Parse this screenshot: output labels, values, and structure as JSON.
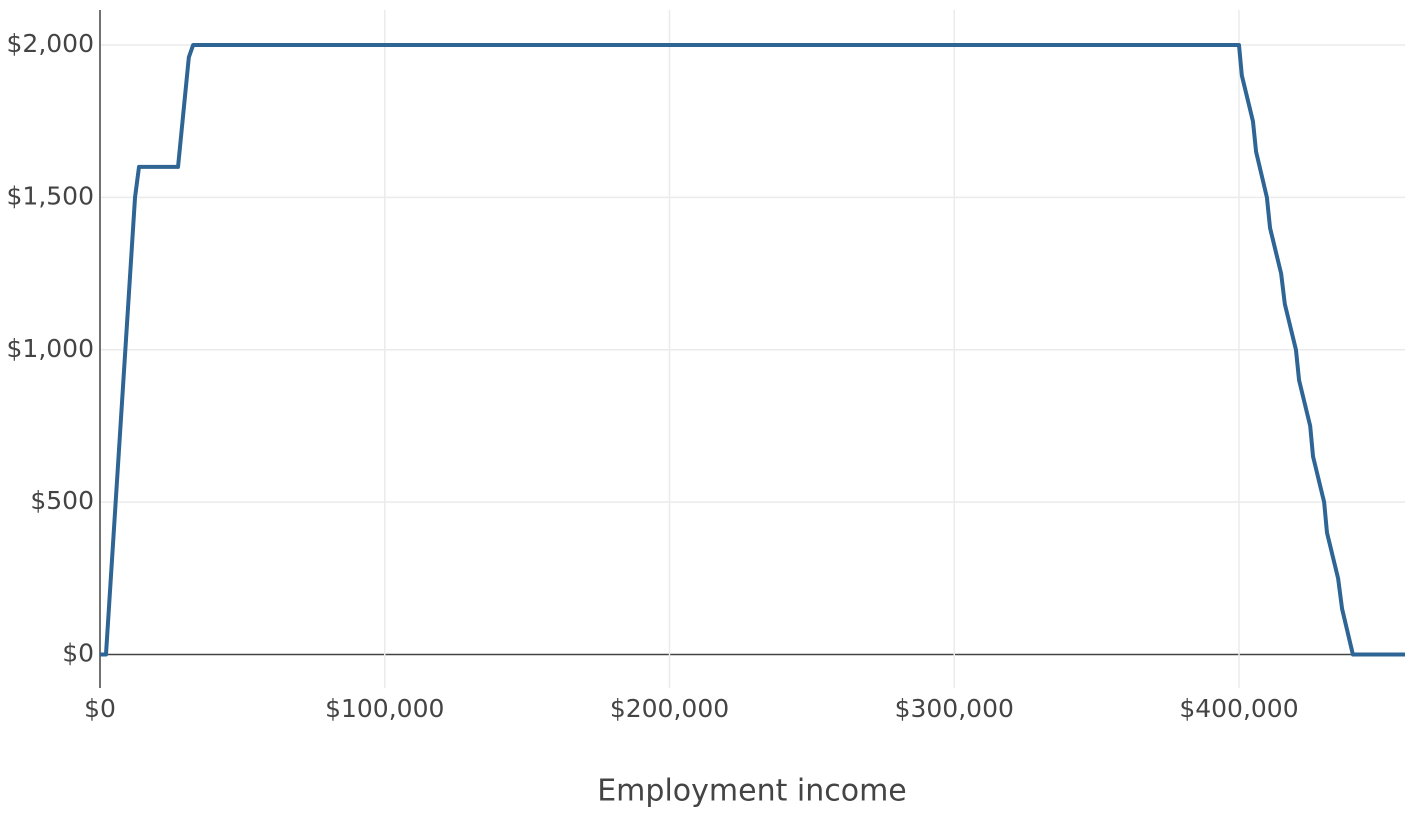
{
  "chart_data": {
    "type": "line",
    "x_label": "Employment income",
    "x": [
      0,
      2100,
      12300,
      13700,
      27400,
      31200,
      32700,
      400000,
      401000,
      404900,
      406000,
      409800,
      410900,
      414800,
      416100,
      420000,
      421100,
      425000,
      426000,
      429900,
      430900,
      434800,
      436200,
      440000,
      458300
    ],
    "series": [
      {
        "color": "#2e6595",
        "values": [
          0,
          0,
          1500,
          1600,
          1600,
          1960,
          2000,
          2000,
          1900,
          1750,
          1650,
          1500,
          1400,
          1250,
          1150,
          1000,
          900,
          750,
          650,
          500,
          400,
          250,
          150,
          0,
          0
        ]
      }
    ],
    "xlim": [
      0,
      458300
    ],
    "ylim": [
      -110,
      2115
    ],
    "xticks": [
      {
        "value": 0,
        "label": "$0"
      },
      {
        "value": 100000,
        "label": "$100,000"
      },
      {
        "value": 200000,
        "label": "$200,000"
      },
      {
        "value": 300000,
        "label": "$300,000"
      },
      {
        "value": 400000,
        "label": "$400,000"
      }
    ],
    "yticks": [
      {
        "value": 0,
        "label": "$0"
      },
      {
        "value": 500,
        "label": "$500"
      },
      {
        "value": 1000,
        "label": "$1,000"
      },
      {
        "value": 1500,
        "label": "$1,500"
      },
      {
        "value": 2000,
        "label": "$2,000"
      }
    ],
    "grid": true
  }
}
